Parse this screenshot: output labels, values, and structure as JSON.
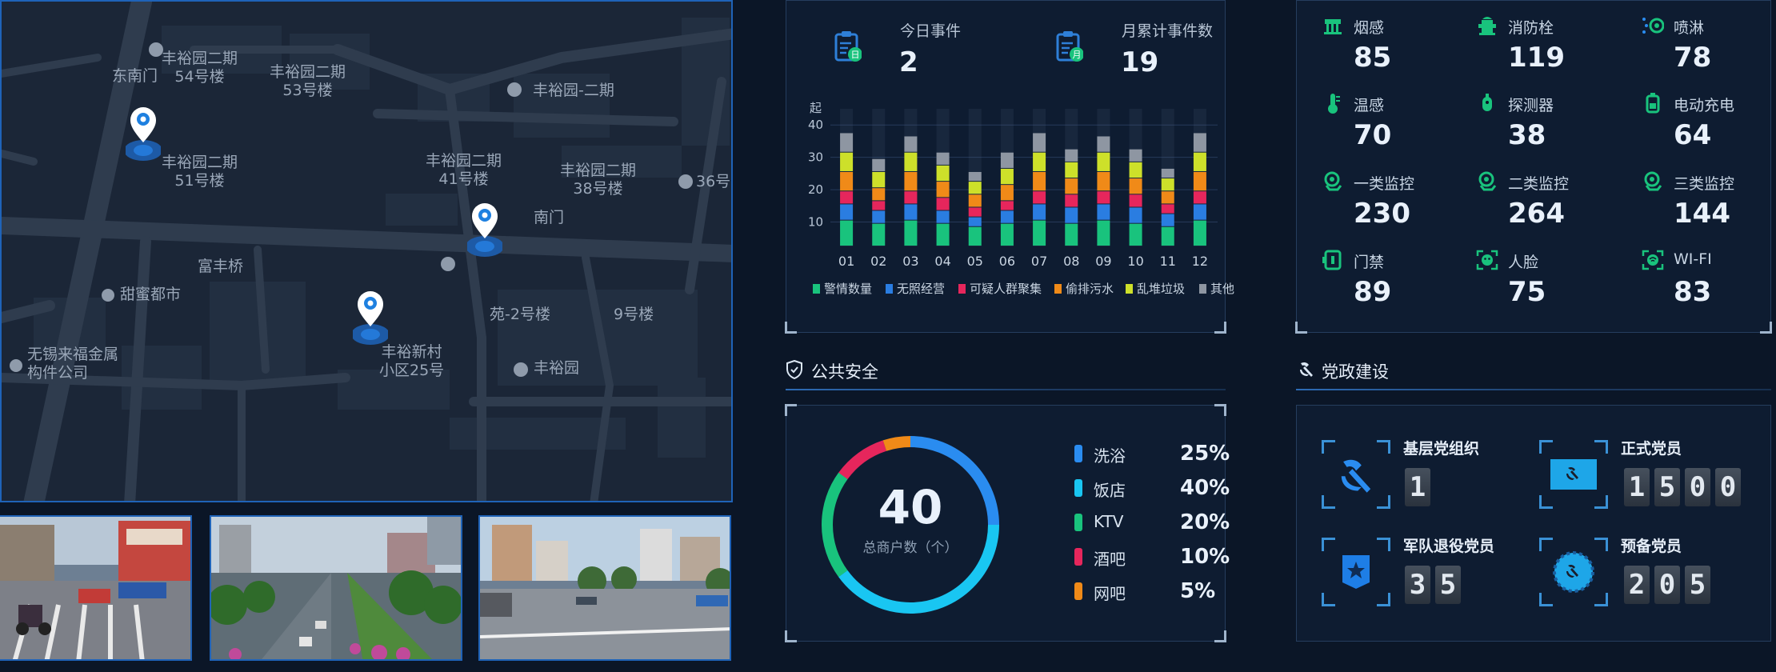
{
  "map": {
    "labels": [
      {
        "text": "丰裕园二期\n54号楼"
      },
      {
        "text": "丰裕园二期\n53号楼"
      },
      {
        "text": "东南门"
      },
      {
        "text": "丰裕园-二期"
      },
      {
        "text": "丰裕园二期\n51号楼"
      },
      {
        "text": "丰裕园二期\n41号楼"
      },
      {
        "text": "丰裕园二期\n38号楼"
      },
      {
        "text": "36号"
      },
      {
        "text": "南门"
      },
      {
        "text": "富丰桥"
      },
      {
        "text": "甜蜜都市"
      },
      {
        "text": "苑-2号楼"
      },
      {
        "text": "9号楼"
      },
      {
        "text": "丰裕新村\n小区25号"
      },
      {
        "text": "丰裕园"
      },
      {
        "text": "无锡来福金属\n构件公司"
      }
    ]
  },
  "events": {
    "today_label": "今日事件",
    "today_value": "2",
    "today_icon_text": "日",
    "month_label": "月累计事件数",
    "month_value": "19",
    "month_icon_text": "月"
  },
  "chart_data": {
    "type": "bar",
    "stacked": true,
    "y_unit_label": "起",
    "ylim": [
      0,
      45
    ],
    "yticks": [
      "10",
      "20",
      "30",
      "40"
    ],
    "categories": [
      "01",
      "02",
      "03",
      "04",
      "05",
      "06",
      "07",
      "08",
      "09",
      "10",
      "11",
      "12"
    ],
    "series": [
      {
        "name": "警情数量",
        "color": "#19c37d",
        "values": [
          8,
          7,
          8,
          7,
          6,
          7,
          8,
          7,
          8,
          7,
          6,
          8
        ]
      },
      {
        "name": "无照经营",
        "color": "#2a7de1",
        "values": [
          5,
          4,
          5,
          4,
          3,
          4,
          5,
          5,
          5,
          5,
          4,
          5
        ]
      },
      {
        "name": "可疑人群聚集",
        "color": "#e6265c",
        "values": [
          4,
          3,
          4,
          4,
          3,
          3,
          4,
          4,
          4,
          4,
          3,
          4
        ]
      },
      {
        "name": "偷排污水",
        "color": "#f08a18",
        "values": [
          6,
          4,
          6,
          5,
          4,
          5,
          6,
          5,
          6,
          5,
          4,
          6
        ]
      },
      {
        "name": "乱堆垃圾",
        "color": "#cde02a",
        "values": [
          6,
          5,
          6,
          5,
          4,
          5,
          6,
          5,
          6,
          5,
          4,
          6
        ]
      },
      {
        "name": "其他",
        "color": "#8e96a2",
        "values": [
          6,
          4,
          5,
          4,
          3,
          5,
          6,
          4,
          5,
          4,
          3,
          6
        ]
      }
    ]
  },
  "sensors": [
    {
      "name": "烟感",
      "value": "85",
      "icon": "smoke-sensor-icon"
    },
    {
      "name": "消防栓",
      "value": "119",
      "icon": "hydrant-icon"
    },
    {
      "name": "喷淋",
      "value": "78",
      "icon": "sprinkler-icon"
    },
    {
      "name": "温感",
      "value": "70",
      "icon": "thermometer-icon"
    },
    {
      "name": "探测器",
      "value": "38",
      "icon": "detector-icon"
    },
    {
      "name": "电动充电",
      "value": "64",
      "icon": "charger-icon"
    },
    {
      "name": "一类监控",
      "value": "230",
      "icon": "camera-icon"
    },
    {
      "name": "二类监控",
      "value": "264",
      "icon": "camera-icon"
    },
    {
      "name": "三类监控",
      "value": "144",
      "icon": "camera-icon"
    },
    {
      "name": "门禁",
      "value": "89",
      "icon": "access-control-icon"
    },
    {
      "name": "人脸",
      "value": "75",
      "icon": "face-icon"
    },
    {
      "name": "WI-FI",
      "value": "83",
      "icon": "wifi-icon"
    }
  ],
  "public_safety": {
    "title": "公共安全",
    "total": "40",
    "total_label": "总商户数（个）",
    "items": [
      {
        "name": "洗浴",
        "percent": "25%",
        "value": 25,
        "color": "#2a8cf0"
      },
      {
        "name": "饭店",
        "percent": "40%",
        "value": 40,
        "color": "#19c6f2"
      },
      {
        "name": "KTV",
        "percent": "20%",
        "value": 20,
        "color": "#19c37d"
      },
      {
        "name": "酒吧",
        "percent": "10%",
        "value": 10,
        "color": "#e6265c"
      },
      {
        "name": "网吧",
        "percent": "5%",
        "value": 5,
        "color": "#f08a18"
      }
    ]
  },
  "party": {
    "title": "党政建设",
    "items": [
      {
        "label": "基层党组织",
        "digits": [
          "1"
        ]
      },
      {
        "label": "正式党员",
        "digits": [
          "1",
          "5",
          "0",
          "0"
        ]
      },
      {
        "label": "军队退役党员",
        "digits": [
          "3",
          "5"
        ]
      },
      {
        "label": "预备党员",
        "digits": [
          "2",
          "0",
          "5"
        ]
      }
    ]
  },
  "colors": {
    "accent": "#1f63b8",
    "panel_border": "#253d5e",
    "green_icon": "#19c37d"
  }
}
